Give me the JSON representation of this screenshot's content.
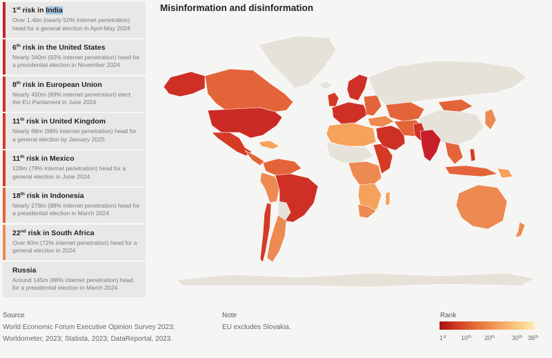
{
  "sidebar": {
    "items": [
      {
        "rank": "1",
        "suffix": "st",
        "prefix": "risk in",
        "country": "India",
        "description": "Over 1.4bn (nearly 50% internet penetration) head for a general election in April-May 2024",
        "color": "#c8202a"
      },
      {
        "rank": "6",
        "suffix": "th",
        "prefix": "risk in",
        "country": "the United States",
        "description": "Nearly 340m (92% internet penetration) head for a presidential election in November 2024",
        "color": "#cc2a26"
      },
      {
        "rank": "8",
        "suffix": "th",
        "prefix": "risk in",
        "country": "European Union",
        "description": "Nearly 450m (89% internet penetration) elect the EU Parliament in June 2024",
        "color": "#cf3026"
      },
      {
        "rank": "11",
        "suffix": "th",
        "prefix": "risk in",
        "country": "United Kingdom",
        "description": "Nearly 68m (98% internet penetration) head for a general election by January 2025",
        "color": "#d53a26"
      },
      {
        "rank": "11",
        "suffix": "th",
        "prefix": "risk in",
        "country": "Mexico",
        "description": "128m (79% internet penetration) head for a general election in June 2024",
        "color": "#d53a26"
      },
      {
        "rank": "18",
        "suffix": "th",
        "prefix": "risk in",
        "country": "Indonesia",
        "description": "Nearly 278m (88% internet penetration) head for a presidential election in March 2024",
        "color": "#e4643a"
      },
      {
        "rank": "22",
        "suffix": "nd",
        "prefix": "risk in",
        "country": "South Africa",
        "description": "Over 60m (72% internet penetration) head for a general election in 2024",
        "color": "#ec8a52"
      },
      {
        "rank": "",
        "suffix": "",
        "prefix": "",
        "country": "Russia",
        "description": "Around 145m (88% internet penetration) head for a presidential election in March 2024",
        "color": "#e9e8e7"
      }
    ]
  },
  "map": {
    "title": "Misinformation and disinformation",
    "no_data_color": "#e6e1d9",
    "scale": [
      "#a5120f",
      "#d23a1f",
      "#e8703a",
      "#f4a25c",
      "#f9cf88",
      "#fdf0b8"
    ]
  },
  "footer": {
    "source_label": "Source",
    "source_line1": "World Economic Forum Executive Opinion Survey 2023;",
    "source_line2": "Worldometer, 2023; Statista, 2023; DataReportal, 2023.",
    "note_label": "Note",
    "note_text": "EU excludes Slovakia."
  },
  "legend": {
    "title": "Rank",
    "ticks": [
      {
        "num": "1",
        "sup": "st"
      },
      {
        "num": "10",
        "sup": "th"
      },
      {
        "num": "20",
        "sup": "th"
      },
      {
        "num": "30",
        "sup": "th"
      },
      {
        "num": "36",
        "sup": "th"
      }
    ]
  }
}
